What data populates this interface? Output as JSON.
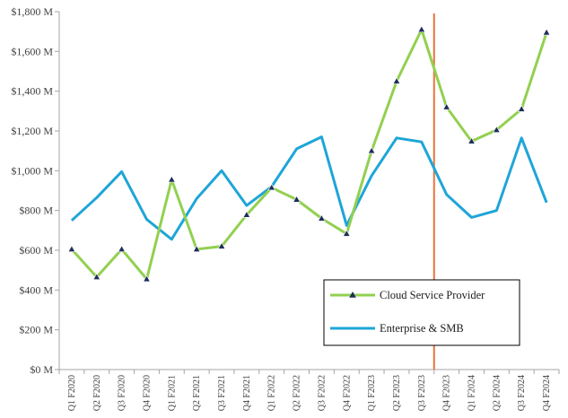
{
  "chart_data": {
    "type": "line",
    "title": "",
    "xlabel": "",
    "ylabel": "",
    "categories": [
      "Q1 F2020",
      "Q2 F2020",
      "Q3 F2020",
      "Q4 F2020",
      "Q1 F2021",
      "Q2 F2021",
      "Q3 F2021",
      "Q4 F2021",
      "Q1 F2022",
      "Q2 F2022",
      "Q3 F2022",
      "Q4 F2022",
      "Q1 F2023",
      "Q2 F2023",
      "Q3 F2023",
      "Q4 F2023",
      "Q1 F2024",
      "Q2 F2024",
      "Q3 F2024",
      "Q4 F2024"
    ],
    "ylim": [
      0,
      1800
    ],
    "yticks": [
      0,
      200,
      400,
      600,
      800,
      1000,
      1200,
      1400,
      1600,
      1800
    ],
    "ytick_labels": [
      "$0 M",
      "$200 M",
      "$400 M",
      "$600 M",
      "$800 M",
      "$1,000 M",
      "$1,200 M",
      "$1,400 M",
      "$1,600 M",
      "$1,800 M"
    ],
    "grid": false,
    "legend_position": "bottom-right",
    "series": [
      {
        "name": "Cloud Service Provider",
        "color": "#92d050",
        "marker": "triangle",
        "marker_color": "#1f2d5a",
        "values": [
          605,
          465,
          605,
          455,
          955,
          605,
          620,
          778,
          915,
          855,
          760,
          683,
          1100,
          1450,
          1710,
          1320,
          1148,
          1205,
          1310,
          1695
        ]
      },
      {
        "name": "Enterprise & SMB",
        "color": "#1ea5d8",
        "values": [
          750,
          865,
          995,
          755,
          655,
          860,
          1000,
          825,
          920,
          1110,
          1170,
          725,
          975,
          1165,
          1145,
          880,
          765,
          800,
          1165,
          840
        ]
      }
    ],
    "vline": {
      "after_category": "Q3 F2023",
      "color": "#e8743b"
    }
  }
}
